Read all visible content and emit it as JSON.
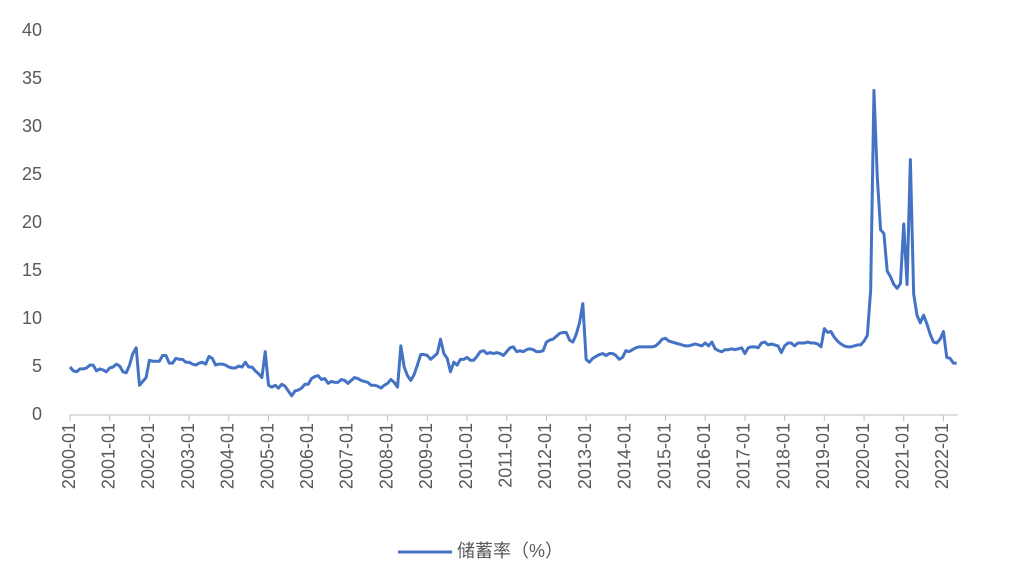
{
  "chart_data": {
    "type": "line",
    "categories": [
      "2000-01",
      null,
      null,
      null,
      null,
      null,
      null,
      null,
      null,
      null,
      null,
      null,
      "2001-01",
      null,
      null,
      null,
      null,
      null,
      null,
      null,
      null,
      null,
      null,
      null,
      "2002-01",
      null,
      null,
      null,
      null,
      null,
      null,
      null,
      null,
      null,
      null,
      null,
      "2003-01",
      null,
      null,
      null,
      null,
      null,
      null,
      null,
      null,
      null,
      null,
      null,
      "2004-01",
      null,
      null,
      null,
      null,
      null,
      null,
      null,
      null,
      null,
      null,
      null,
      "2005-01",
      null,
      null,
      null,
      null,
      null,
      null,
      null,
      null,
      null,
      null,
      null,
      "2006-01",
      null,
      null,
      null,
      null,
      null,
      null,
      null,
      null,
      null,
      null,
      null,
      "2007-01",
      null,
      null,
      null,
      null,
      null,
      null,
      null,
      null,
      null,
      null,
      null,
      "2008-01",
      null,
      null,
      null,
      null,
      null,
      null,
      null,
      null,
      null,
      null,
      null,
      "2009-01",
      null,
      null,
      null,
      null,
      null,
      null,
      null,
      null,
      null,
      null,
      null,
      "2010-01",
      null,
      null,
      null,
      null,
      null,
      null,
      null,
      null,
      null,
      null,
      null,
      "2011-01",
      null,
      null,
      null,
      null,
      null,
      null,
      null,
      null,
      null,
      null,
      null,
      "2012-01",
      null,
      null,
      null,
      null,
      null,
      null,
      null,
      null,
      null,
      null,
      null,
      "2013-01",
      null,
      null,
      null,
      null,
      null,
      null,
      null,
      null,
      null,
      null,
      null,
      "2014-01",
      null,
      null,
      null,
      null,
      null,
      null,
      null,
      null,
      null,
      null,
      null,
      "2015-01",
      null,
      null,
      null,
      null,
      null,
      null,
      null,
      null,
      null,
      null,
      null,
      "2016-01",
      null,
      null,
      null,
      null,
      null,
      null,
      null,
      null,
      null,
      null,
      null,
      "2017-01",
      null,
      null,
      null,
      null,
      null,
      null,
      null,
      null,
      null,
      null,
      null,
      "2018-01",
      null,
      null,
      null,
      null,
      null,
      null,
      null,
      null,
      null,
      null,
      null,
      "2019-01",
      null,
      null,
      null,
      null,
      null,
      null,
      null,
      null,
      null,
      null,
      null,
      "2020-01",
      null,
      null,
      null,
      null,
      null,
      null,
      null,
      null,
      null,
      null,
      null,
      "2021-01",
      null,
      null,
      null,
      null,
      null,
      null,
      null,
      null,
      null,
      null,
      null,
      "2022-01",
      null,
      null,
      null,
      null
    ],
    "series": [
      {
        "name": "储蓄率（%）",
        "color": "#4472c4",
        "values": [
          5.0,
          4.6,
          4.5,
          4.8,
          4.8,
          4.9,
          5.2,
          5.2,
          4.6,
          4.8,
          4.7,
          4.5,
          4.9,
          5.0,
          5.3,
          5.1,
          4.5,
          4.4,
          5.2,
          6.4,
          7.0,
          3.1,
          3.5,
          3.9,
          5.7,
          5.6,
          5.6,
          5.6,
          6.2,
          6.2,
          5.4,
          5.4,
          5.9,
          5.8,
          5.8,
          5.5,
          5.5,
          5.3,
          5.2,
          5.4,
          5.5,
          5.3,
          6.1,
          5.9,
          5.2,
          5.3,
          5.3,
          5.2,
          5.0,
          4.9,
          4.9,
          5.1,
          5.0,
          5.5,
          5.0,
          5.0,
          4.6,
          4.3,
          3.9,
          6.6,
          3.1,
          2.9,
          3.1,
          2.8,
          3.2,
          3.0,
          2.5,
          2.0,
          2.5,
          2.6,
          2.8,
          3.2,
          3.2,
          3.8,
          4.0,
          4.1,
          3.7,
          3.8,
          3.3,
          3.5,
          3.4,
          3.4,
          3.7,
          3.6,
          3.3,
          3.6,
          3.9,
          3.8,
          3.6,
          3.5,
          3.4,
          3.1,
          3.1,
          3.0,
          2.8,
          3.1,
          3.3,
          3.7,
          3.4,
          2.9,
          7.2,
          5.0,
          4.1,
          3.6,
          4.2,
          5.2,
          6.3,
          6.3,
          6.2,
          5.8,
          6.1,
          6.4,
          7.9,
          6.4,
          5.9,
          4.5,
          5.5,
          5.2,
          5.8,
          5.8,
          6.0,
          5.7,
          5.7,
          6.1,
          6.6,
          6.7,
          6.4,
          6.5,
          6.4,
          6.5,
          6.4,
          6.2,
          6.6,
          7.0,
          7.1,
          6.6,
          6.7,
          6.6,
          6.8,
          6.9,
          6.8,
          6.6,
          6.6,
          6.7,
          7.6,
          7.8,
          7.9,
          8.2,
          8.5,
          8.6,
          8.6,
          7.8,
          7.6,
          8.4,
          9.6,
          11.6,
          5.8,
          5.5,
          5.9,
          6.1,
          6.3,
          6.4,
          6.2,
          6.4,
          6.4,
          6.2,
          5.8,
          6.0,
          6.7,
          6.6,
          6.8,
          7.0,
          7.1,
          7.1,
          7.1,
          7.1,
          7.1,
          7.2,
          7.5,
          7.9,
          8.0,
          7.7,
          7.6,
          7.5,
          7.4,
          7.3,
          7.2,
          7.2,
          7.3,
          7.4,
          7.3,
          7.2,
          7.5,
          7.2,
          7.6,
          6.9,
          6.7,
          6.6,
          6.8,
          6.8,
          6.9,
          6.8,
          6.9,
          7.0,
          6.4,
          7.0,
          7.1,
          7.1,
          7.0,
          7.5,
          7.6,
          7.3,
          7.4,
          7.3,
          7.2,
          6.5,
          7.2,
          7.5,
          7.5,
          7.2,
          7.5,
          7.5,
          7.5,
          7.6,
          7.5,
          7.5,
          7.4,
          7.1,
          9.0,
          8.6,
          8.7,
          8.1,
          7.7,
          7.4,
          7.2,
          7.1,
          7.1,
          7.2,
          7.3,
          7.3,
          7.7,
          8.3,
          13.0,
          33.8,
          24.8,
          19.3,
          18.9,
          15.0,
          14.4,
          13.6,
          13.2,
          13.7,
          19.9,
          13.6,
          26.6,
          12.6,
          10.4,
          9.6,
          10.4,
          9.5,
          8.4,
          7.6,
          7.5,
          7.9,
          8.7,
          6.0,
          5.9,
          5.4,
          5.4
        ]
      }
    ],
    "ylim": [
      0,
      40
    ],
    "yticks": [
      0,
      5,
      10,
      15,
      20,
      25,
      30,
      35,
      40
    ],
    "grid": false,
    "legend": "bottom"
  }
}
